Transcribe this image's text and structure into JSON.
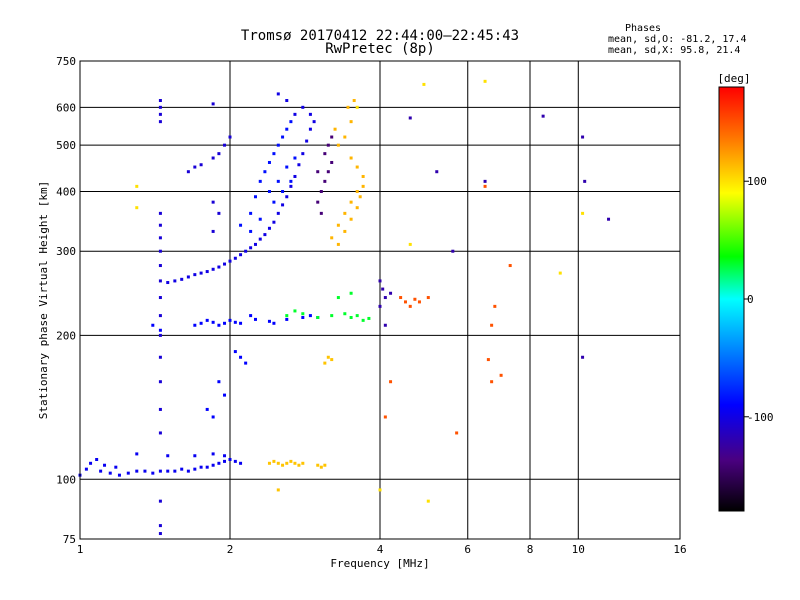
{
  "chart_data": {
    "type": "scatter",
    "title": "Tromsø 20170412 22:44:00–22:45:43",
    "subtitle": "RwPretec (8p)",
    "xlabel": "Frequency [MHz]",
    "ylabel": "Stationary phase Virtual Height [km]",
    "xscale": "log",
    "yscale": "log",
    "xlim": [
      1,
      16
    ],
    "ylim": [
      75,
      750
    ],
    "x_ticks": [
      "1",
      "2",
      "4",
      "6",
      "8",
      "10",
      "16"
    ],
    "x_tick_values": [
      1,
      2,
      4,
      6,
      8,
      10,
      16
    ],
    "y_ticks": [
      "75",
      "100",
      "200",
      "300",
      "400",
      "500",
      "600",
      "750"
    ],
    "y_tick_values": [
      75,
      100,
      200,
      300,
      400,
      500,
      600,
      750
    ],
    "grid": true,
    "legend": {
      "title": "Phases",
      "lines": [
        "mean, sd,O: -81.2, 17.4",
        "mean, sd,X:  95.8, 21.4"
      ],
      "placement": "top-right"
    },
    "colorbar": {
      "label": "[deg]",
      "min": -180,
      "max": 180,
      "ticks": [
        100,
        0,
        -100
      ],
      "tick_labels": [
        "100",
        "0",
        "-100"
      ]
    },
    "series": [
      {
        "phase": -95,
        "points": [
          [
            1.0,
            102
          ],
          [
            1.03,
            105
          ],
          [
            1.05,
            108
          ],
          [
            1.08,
            110
          ],
          [
            1.1,
            104
          ],
          [
            1.12,
            107
          ],
          [
            1.15,
            103
          ],
          [
            1.18,
            106
          ],
          [
            1.2,
            102
          ],
          [
            1.25,
            103
          ],
          [
            1.3,
            104
          ],
          [
            1.35,
            104
          ],
          [
            1.4,
            103
          ],
          [
            1.45,
            104
          ],
          [
            1.5,
            104
          ],
          [
            1.55,
            104
          ],
          [
            1.6,
            105
          ],
          [
            1.65,
            104
          ],
          [
            1.7,
            105
          ],
          [
            1.75,
            106
          ],
          [
            1.8,
            106
          ],
          [
            1.85,
            107
          ],
          [
            1.9,
            108
          ],
          [
            1.95,
            109
          ],
          [
            2.0,
            110
          ],
          [
            2.05,
            109
          ],
          [
            2.1,
            108
          ],
          [
            1.3,
            113
          ],
          [
            1.5,
            112
          ],
          [
            1.7,
            112
          ],
          [
            1.85,
            113
          ],
          [
            1.95,
            112
          ]
        ]
      },
      {
        "phase": -100,
        "points": [
          [
            1.5,
            258
          ],
          [
            1.55,
            260
          ],
          [
            1.6,
            262
          ],
          [
            1.65,
            265
          ],
          [
            1.7,
            268
          ],
          [
            1.75,
            270
          ],
          [
            1.8,
            272
          ],
          [
            1.85,
            275
          ],
          [
            1.9,
            278
          ],
          [
            1.95,
            282
          ],
          [
            2.0,
            286
          ],
          [
            2.05,
            290
          ],
          [
            2.1,
            295
          ],
          [
            2.15,
            300
          ],
          [
            2.2,
            305
          ],
          [
            2.25,
            310
          ],
          [
            2.3,
            318
          ],
          [
            2.35,
            325
          ],
          [
            2.4,
            335
          ],
          [
            2.45,
            345
          ],
          [
            2.5,
            360
          ],
          [
            2.55,
            375
          ],
          [
            2.6,
            390
          ],
          [
            2.65,
            410
          ],
          [
            2.7,
            430
          ],
          [
            2.75,
            455
          ],
          [
            2.8,
            480
          ],
          [
            2.85,
            510
          ],
          [
            2.9,
            540
          ],
          [
            2.7,
            580
          ],
          [
            2.6,
            620
          ],
          [
            2.5,
            640
          ],
          [
            2.8,
            600
          ],
          [
            2.9,
            580
          ],
          [
            2.95,
            560
          ]
        ]
      },
      {
        "phase": -85,
        "points": [
          [
            2.1,
            340
          ],
          [
            2.2,
            360
          ],
          [
            2.25,
            390
          ],
          [
            2.3,
            420
          ],
          [
            2.35,
            440
          ],
          [
            2.4,
            460
          ],
          [
            2.45,
            480
          ],
          [
            2.5,
            500
          ],
          [
            2.55,
            520
          ],
          [
            2.6,
            540
          ],
          [
            2.65,
            560
          ],
          [
            2.4,
            400
          ],
          [
            2.5,
            420
          ],
          [
            2.6,
            450
          ],
          [
            2.7,
            470
          ],
          [
            2.2,
            330
          ],
          [
            2.3,
            350
          ],
          [
            2.45,
            380
          ],
          [
            2.55,
            400
          ],
          [
            2.65,
            420
          ]
        ]
      },
      {
        "phase": -140,
        "points": [
          [
            3.0,
            380
          ],
          [
            3.05,
            400
          ],
          [
            3.1,
            420
          ],
          [
            3.15,
            440
          ],
          [
            3.2,
            460
          ],
          [
            3.1,
            480
          ],
          [
            3.0,
            440
          ],
          [
            3.15,
            500
          ],
          [
            3.2,
            520
          ],
          [
            3.05,
            360
          ]
        ]
      },
      {
        "phase": 115,
        "points": [
          [
            3.2,
            320
          ],
          [
            3.3,
            340
          ],
          [
            3.4,
            360
          ],
          [
            3.5,
            380
          ],
          [
            3.6,
            400
          ],
          [
            3.7,
            410
          ],
          [
            3.3,
            310
          ],
          [
            3.4,
            330
          ],
          [
            3.5,
            350
          ],
          [
            3.6,
            370
          ],
          [
            3.65,
            390
          ],
          [
            3.7,
            430
          ],
          [
            3.6,
            450
          ],
          [
            3.5,
            470
          ],
          [
            3.4,
            520
          ],
          [
            3.5,
            560
          ],
          [
            3.45,
            600
          ],
          [
            3.55,
            620
          ],
          [
            3.3,
            500
          ],
          [
            3.25,
            540
          ]
        ]
      },
      {
        "phase": 110,
        "points": [
          [
            2.4,
            108
          ],
          [
            2.45,
            109
          ],
          [
            2.5,
            108
          ],
          [
            2.55,
            107
          ],
          [
            2.6,
            108
          ],
          [
            2.65,
            109
          ],
          [
            2.7,
            108
          ],
          [
            2.75,
            107
          ],
          [
            2.8,
            108
          ],
          [
            3.0,
            107
          ],
          [
            3.05,
            106
          ],
          [
            3.1,
            107
          ],
          [
            2.5,
            95
          ],
          [
            3.1,
            175
          ],
          [
            3.15,
            180
          ],
          [
            3.2,
            178
          ]
        ]
      },
      {
        "phase": -90,
        "points": [
          [
            1.7,
            210
          ],
          [
            1.75,
            212
          ],
          [
            1.8,
            215
          ],
          [
            1.85,
            213
          ],
          [
            1.9,
            210
          ],
          [
            1.95,
            212
          ],
          [
            2.0,
            215
          ],
          [
            2.05,
            213
          ],
          [
            2.1,
            212
          ],
          [
            2.2,
            220
          ],
          [
            2.25,
            216
          ],
          [
            2.4,
            214
          ],
          [
            2.45,
            212
          ],
          [
            2.6,
            216
          ],
          [
            2.8,
            218
          ],
          [
            2.9,
            220
          ],
          [
            3.0,
            218
          ],
          [
            1.4,
            210
          ],
          [
            1.45,
            205
          ],
          [
            2.1,
            180
          ],
          [
            2.15,
            175
          ],
          [
            2.05,
            185
          ],
          [
            1.9,
            160
          ],
          [
            1.95,
            150
          ],
          [
            1.8,
            140
          ],
          [
            1.85,
            135
          ]
        ]
      },
      {
        "phase": 30,
        "points": [
          [
            2.6,
            220
          ],
          [
            2.7,
            225
          ],
          [
            2.8,
            222
          ],
          [
            3.0,
            218
          ],
          [
            3.2,
            220
          ],
          [
            3.4,
            222
          ],
          [
            3.5,
            218
          ],
          [
            3.6,
            220
          ],
          [
            3.7,
            215
          ],
          [
            3.8,
            217
          ],
          [
            3.3,
            240
          ],
          [
            3.5,
            245
          ]
        ]
      },
      {
        "phase": -105,
        "points": [
          [
            1.45,
            620
          ],
          [
            1.45,
            600
          ],
          [
            1.45,
            580
          ],
          [
            1.45,
            560
          ],
          [
            1.45,
            360
          ],
          [
            1.45,
            340
          ],
          [
            1.45,
            320
          ],
          [
            1.45,
            300
          ],
          [
            1.45,
            280
          ],
          [
            1.45,
            260
          ],
          [
            1.45,
            240
          ],
          [
            1.45,
            220
          ],
          [
            1.45,
            200
          ],
          [
            1.45,
            180
          ],
          [
            1.45,
            160
          ],
          [
            1.45,
            140
          ],
          [
            1.45,
            125
          ],
          [
            1.45,
            90
          ],
          [
            1.45,
            80
          ],
          [
            1.45,
            77
          ],
          [
            1.65,
            440
          ],
          [
            1.7,
            450
          ],
          [
            1.75,
            455
          ],
          [
            1.85,
            470
          ],
          [
            1.9,
            480
          ],
          [
            1.95,
            500
          ],
          [
            2.0,
            520
          ],
          [
            1.85,
            610
          ],
          [
            1.85,
            380
          ],
          [
            1.9,
            360
          ],
          [
            1.85,
            330
          ]
        ]
      },
      {
        "phase": -120,
        "points": [
          [
            4.0,
            260
          ],
          [
            4.05,
            250
          ],
          [
            4.1,
            240
          ],
          [
            4.0,
            230
          ],
          [
            4.2,
            245
          ],
          [
            4.1,
            210
          ],
          [
            5.2,
            440
          ],
          [
            5.6,
            300
          ],
          [
            6.5,
            420
          ],
          [
            8.5,
            575
          ],
          [
            10.2,
            520
          ],
          [
            10.3,
            420
          ],
          [
            11.5,
            350
          ],
          [
            10.2,
            180
          ],
          [
            4.6,
            570
          ]
        ]
      },
      {
        "phase": 150,
        "points": [
          [
            4.4,
            240
          ],
          [
            4.5,
            235
          ],
          [
            4.6,
            230
          ],
          [
            4.7,
            238
          ],
          [
            4.8,
            235
          ],
          [
            5.0,
            240
          ],
          [
            6.8,
            230
          ],
          [
            7.3,
            280
          ],
          [
            6.7,
            210
          ],
          [
            6.6,
            178
          ],
          [
            6.7,
            160
          ],
          [
            7.0,
            165
          ],
          [
            6.5,
            410
          ],
          [
            4.2,
            160
          ],
          [
            4.1,
            135
          ],
          [
            5.7,
            125
          ]
        ]
      },
      {
        "phase": 100,
        "points": [
          [
            5.0,
            90
          ],
          [
            4.0,
            95
          ],
          [
            1.3,
            410
          ],
          [
            1.3,
            370
          ],
          [
            10.2,
            360
          ],
          [
            9.2,
            270
          ],
          [
            6.5,
            680
          ],
          [
            4.9,
            670
          ],
          [
            4.6,
            310
          ],
          [
            3.6,
            600
          ]
        ]
      }
    ]
  }
}
